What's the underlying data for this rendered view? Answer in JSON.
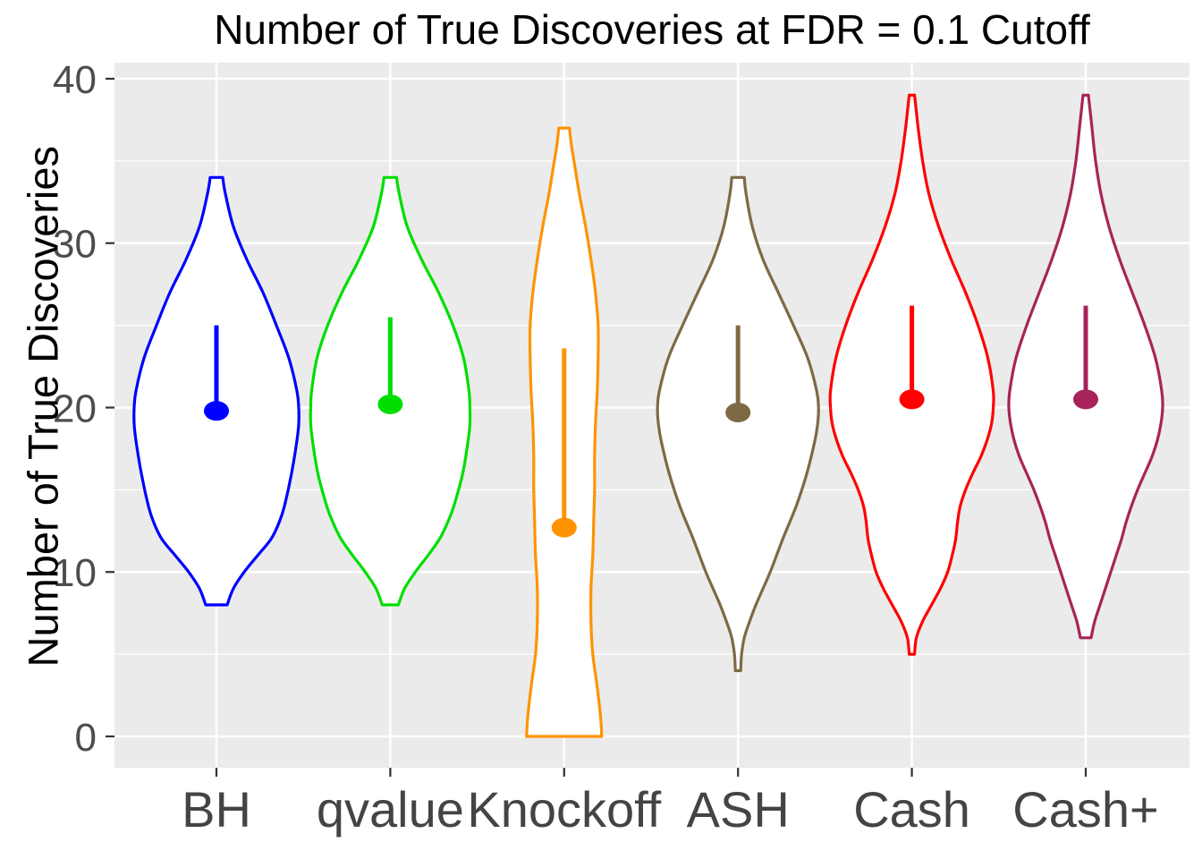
{
  "title": "Number of True Discoveries at FDR = 0.1 Cutoff",
  "chart_data": {
    "type": "violin",
    "title": "Number of True Discoveries at FDR = 0.1 Cutoff",
    "xlabel": "",
    "ylabel": "Number of True Discoveries",
    "ylim": [
      0,
      40
    ],
    "yticks": [
      0,
      10,
      20,
      30,
      40
    ],
    "minor_gridlines": [
      5,
      15,
      25,
      35
    ],
    "grid": "on",
    "legend": "none",
    "panel_bg": "#EBEBEB",
    "grid_color": "#FFFFFF",
    "tick_color": "#333333",
    "tick_label_color": "#4D4D4D",
    "categories": [
      "BH",
      "qvalue",
      "Knockoff",
      "ASH",
      "Cash",
      "Cash+"
    ],
    "series": [
      {
        "name": "BH",
        "color": "#0000FF",
        "point_estimate": 19.8,
        "range_low": 19.8,
        "range_high": 25.0,
        "violin_min": 8,
        "violin_max": 34,
        "profile": [
          [
            34,
            7
          ],
          [
            33,
            10
          ],
          [
            31,
            19
          ],
          [
            29,
            34
          ],
          [
            27,
            52
          ],
          [
            25,
            67
          ],
          [
            23,
            81
          ],
          [
            21,
            90
          ],
          [
            20,
            92
          ],
          [
            19,
            92
          ],
          [
            18,
            90
          ],
          [
            16,
            84
          ],
          [
            14,
            76
          ],
          [
            13,
            70
          ],
          [
            12,
            61
          ],
          [
            11,
            46
          ],
          [
            10,
            31
          ],
          [
            9,
            19
          ],
          [
            8,
            12
          ]
        ]
      },
      {
        "name": "qvalue",
        "color": "#00DE00",
        "point_estimate": 20.2,
        "range_low": 20.2,
        "range_high": 25.5,
        "violin_min": 8,
        "violin_max": 34,
        "profile": [
          [
            34,
            7
          ],
          [
            33,
            10
          ],
          [
            31,
            19
          ],
          [
            29,
            35
          ],
          [
            27,
            54
          ],
          [
            25,
            70
          ],
          [
            23,
            82
          ],
          [
            21,
            88
          ],
          [
            20,
            89
          ],
          [
            19,
            89
          ],
          [
            18,
            87
          ],
          [
            16,
            81
          ],
          [
            14,
            71
          ],
          [
            13,
            64
          ],
          [
            12,
            55
          ],
          [
            11,
            42
          ],
          [
            10,
            28
          ],
          [
            9,
            16
          ],
          [
            8,
            9
          ]
        ]
      },
      {
        "name": "Knockoff",
        "color": "#FF9300",
        "point_estimate": 12.7,
        "range_low": 12.7,
        "range_high": 23.6,
        "violin_min": 0,
        "violin_max": 37,
        "profile": [
          [
            37,
            6
          ],
          [
            36,
            8
          ],
          [
            35,
            11
          ],
          [
            33,
            17
          ],
          [
            31,
            24
          ],
          [
            29,
            30
          ],
          [
            27,
            35
          ],
          [
            25,
            38
          ],
          [
            23,
            38
          ],
          [
            21,
            37
          ],
          [
            19,
            35
          ],
          [
            17,
            34
          ],
          [
            15,
            34
          ],
          [
            13,
            33
          ],
          [
            11,
            32
          ],
          [
            9,
            30
          ],
          [
            7,
            30
          ],
          [
            5,
            32
          ],
          [
            3,
            37
          ],
          [
            1,
            41
          ],
          [
            0,
            42
          ]
        ]
      },
      {
        "name": "ASH",
        "color": "#7D6A45",
        "point_estimate": 19.7,
        "range_low": 19.7,
        "range_high": 25.0,
        "violin_min": 4,
        "violin_max": 34,
        "profile": [
          [
            34,
            7
          ],
          [
            33,
            9
          ],
          [
            31,
            16
          ],
          [
            29,
            28
          ],
          [
            27,
            45
          ],
          [
            25,
            62
          ],
          [
            23,
            78
          ],
          [
            21,
            88
          ],
          [
            20,
            90
          ],
          [
            19,
            89
          ],
          [
            18,
            86
          ],
          [
            16,
            77
          ],
          [
            14,
            65
          ],
          [
            12,
            50
          ],
          [
            10,
            36
          ],
          [
            9,
            28
          ],
          [
            8,
            20
          ],
          [
            7,
            13
          ],
          [
            6,
            7
          ],
          [
            5,
            4
          ],
          [
            4,
            3
          ]
        ]
      },
      {
        "name": "Cash",
        "color": "#FF0000",
        "point_estimate": 20.5,
        "range_low": 20.5,
        "range_high": 26.2,
        "violin_min": 5,
        "violin_max": 39,
        "profile": [
          [
            39,
            3
          ],
          [
            38,
            5
          ],
          [
            37,
            7
          ],
          [
            35,
            12
          ],
          [
            33,
            19
          ],
          [
            31,
            30
          ],
          [
            29,
            44
          ],
          [
            27,
            60
          ],
          [
            25,
            74
          ],
          [
            23,
            85
          ],
          [
            21,
            91
          ],
          [
            20,
            91
          ],
          [
            19,
            89
          ],
          [
            18,
            84
          ],
          [
            17,
            77
          ],
          [
            16,
            68
          ],
          [
            15,
            60
          ],
          [
            14,
            54
          ],
          [
            13,
            51
          ],
          [
            12,
            49
          ],
          [
            11,
            45
          ],
          [
            10,
            40
          ],
          [
            9,
            32
          ],
          [
            8,
            22
          ],
          [
            7,
            12
          ],
          [
            6,
            5
          ],
          [
            5,
            3
          ]
        ]
      },
      {
        "name": "Cash+",
        "color": "#A8235A",
        "point_estimate": 20.5,
        "range_low": 20.5,
        "range_high": 26.2,
        "violin_min": 6,
        "violin_max": 39,
        "profile": [
          [
            39,
            3
          ],
          [
            38,
            5
          ],
          [
            37,
            7
          ],
          [
            35,
            11
          ],
          [
            33,
            17
          ],
          [
            31,
            26
          ],
          [
            29,
            38
          ],
          [
            27,
            52
          ],
          [
            25,
            66
          ],
          [
            23,
            78
          ],
          [
            21,
            85
          ],
          [
            20,
            86
          ],
          [
            19,
            84
          ],
          [
            18,
            80
          ],
          [
            17,
            74
          ],
          [
            16,
            66
          ],
          [
            15,
            58
          ],
          [
            14,
            51
          ],
          [
            13,
            45
          ],
          [
            12,
            40
          ],
          [
            11,
            34
          ],
          [
            10,
            28
          ],
          [
            9,
            22
          ],
          [
            8,
            16
          ],
          [
            7,
            10
          ],
          [
            6,
            6
          ]
        ]
      }
    ]
  }
}
